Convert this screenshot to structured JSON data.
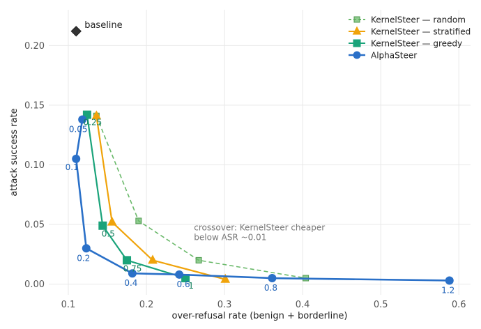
{
  "chart_data": {
    "type": "line",
    "xlabel": "over-refusal rate (benign + borderline)",
    "ylabel": "attack success rate",
    "xlim": [
      0.075,
      0.615
    ],
    "ylim": [
      -0.009,
      0.23
    ],
    "xticks": [
      0.1,
      0.2,
      0.3,
      0.4,
      0.5,
      0.6
    ],
    "xtick_labels": [
      "0.1",
      "0.2",
      "0.3",
      "0.4",
      "0.5",
      "0.6"
    ],
    "yticks": [
      0.0,
      0.05,
      0.1,
      0.15,
      0.2
    ],
    "ytick_labels": [
      "0.00",
      "0.05",
      "0.10",
      "0.15",
      "0.20"
    ],
    "grid": true,
    "legend_position": "top-right",
    "baseline": {
      "label": "baseline",
      "x": 0.11,
      "y": 0.212,
      "color": "#333333"
    },
    "series": [
      {
        "name": "KernelSteer — random",
        "color": "#6ab96a",
        "marker": "square-small",
        "dashed": true,
        "points": [
          {
            "x": 0.136,
            "y": 0.141
          },
          {
            "x": 0.19,
            "y": 0.053
          },
          {
            "x": 0.267,
            "y": 0.02
          },
          {
            "x": 0.404,
            "y": 0.005
          }
        ]
      },
      {
        "name": "KernelSteer — stratified",
        "color": "#f0a30a",
        "marker": "triangle",
        "dashed": false,
        "points": [
          {
            "x": 0.136,
            "y": 0.141
          },
          {
            "x": 0.156,
            "y": 0.052
          },
          {
            "x": 0.208,
            "y": 0.02
          },
          {
            "x": 0.301,
            "y": 0.004
          }
        ]
      },
      {
        "name": "KernelSteer — greedy",
        "color": "#1aa37a",
        "marker": "square",
        "dashed": false,
        "points": [
          {
            "x": 0.124,
            "y": 0.142,
            "label": "0.25"
          },
          {
            "x": 0.144,
            "y": 0.049,
            "label": "0.5"
          },
          {
            "x": 0.175,
            "y": 0.02,
            "label": "0.75"
          },
          {
            "x": 0.25,
            "y": 0.005,
            "label": "1"
          }
        ]
      },
      {
        "name": "AlphaSteer",
        "color": "#2a70c8",
        "marker": "circle",
        "dashed": false,
        "points": [
          {
            "x": 0.118,
            "y": 0.138,
            "label": "0.05"
          },
          {
            "x": 0.11,
            "y": 0.105,
            "label": "0.1"
          },
          {
            "x": 0.123,
            "y": 0.03,
            "label": "0.2"
          },
          {
            "x": 0.182,
            "y": 0.009,
            "label": "0.4"
          },
          {
            "x": 0.242,
            "y": 0.008,
            "label": "0.6"
          },
          {
            "x": 0.361,
            "y": 0.005,
            "label": "0.8"
          },
          {
            "x": 0.588,
            "y": 0.003,
            "label": "1.2"
          }
        ]
      }
    ],
    "legend_order": [
      "KernelSteer — random",
      "KernelSteer — stratified",
      "KernelSteer — greedy",
      "AlphaSteer"
    ],
    "annotation": {
      "lines": [
        "crossover: KernelSteer cheaper",
        "below ASR ~0.01"
      ],
      "x": 0.26,
      "y": 0.045
    }
  }
}
